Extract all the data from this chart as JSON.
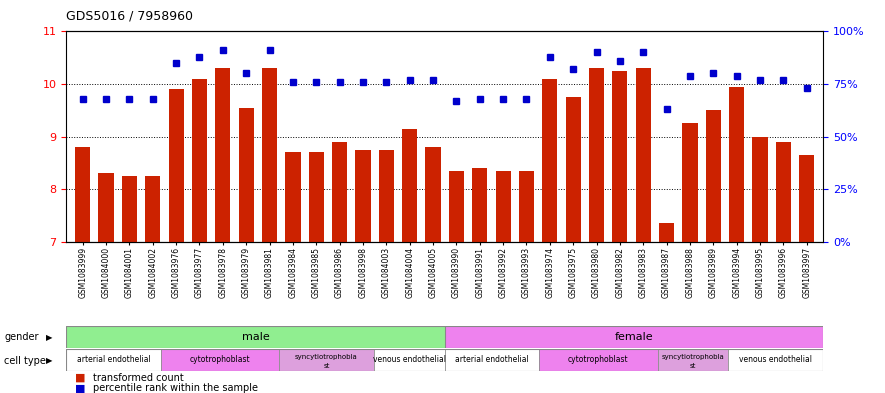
{
  "title": "GDS5016 / 7958960",
  "samples": [
    "GSM1083999",
    "GSM1084000",
    "GSM1084001",
    "GSM1084002",
    "GSM1083976",
    "GSM1083977",
    "GSM1083978",
    "GSM1083979",
    "GSM1083981",
    "GSM1083984",
    "GSM1083985",
    "GSM1083986",
    "GSM1083998",
    "GSM1084003",
    "GSM1084004",
    "GSM1084005",
    "GSM1083990",
    "GSM1083991",
    "GSM1083992",
    "GSM1083993",
    "GSM1083974",
    "GSM1083975",
    "GSM1083980",
    "GSM1083982",
    "GSM1083983",
    "GSM1083987",
    "GSM1083988",
    "GSM1083989",
    "GSM1083994",
    "GSM1083995",
    "GSM1083996",
    "GSM1083997"
  ],
  "bar_values": [
    8.8,
    8.3,
    8.25,
    8.25,
    9.9,
    10.1,
    10.3,
    9.55,
    10.3,
    8.7,
    8.7,
    8.9,
    8.75,
    8.75,
    9.15,
    8.8,
    8.35,
    8.4,
    8.35,
    8.35,
    10.1,
    9.75,
    10.3,
    10.25,
    10.3,
    7.35,
    9.25,
    9.5,
    9.95,
    9.0,
    8.9,
    8.65
  ],
  "percentile_values_pct": [
    68,
    68,
    68,
    68,
    85,
    88,
    91,
    80,
    91,
    76,
    76,
    76,
    76,
    76,
    77,
    77,
    67,
    68,
    68,
    68,
    88,
    82,
    90,
    86,
    90,
    63,
    79,
    80,
    79,
    77,
    77,
    73
  ],
  "ylim_left": [
    7,
    11
  ],
  "bar_color": "#cc2200",
  "dot_color": "#0000cc",
  "gender_colors": [
    "#90ee90",
    "#ee82ee"
  ],
  "cell_type_ranges_male": [
    [
      0,
      4
    ],
    [
      4,
      9
    ],
    [
      9,
      13
    ],
    [
      13,
      16
    ]
  ],
  "cell_type_ranges_female": [
    [
      16,
      20
    ],
    [
      20,
      25
    ],
    [
      25,
      28
    ],
    [
      28,
      32
    ]
  ],
  "cell_type_labels": [
    "arterial endothelial",
    "cytotrophoblast",
    "syncytiotrophoblast",
    "venous endothelial"
  ],
  "cell_type_colors": [
    "#ffffff",
    "#ee82ee",
    "#dda0dd",
    "#ffffff"
  ],
  "legend_red": "transformed count",
  "legend_blue": "percentile rank within the sample"
}
